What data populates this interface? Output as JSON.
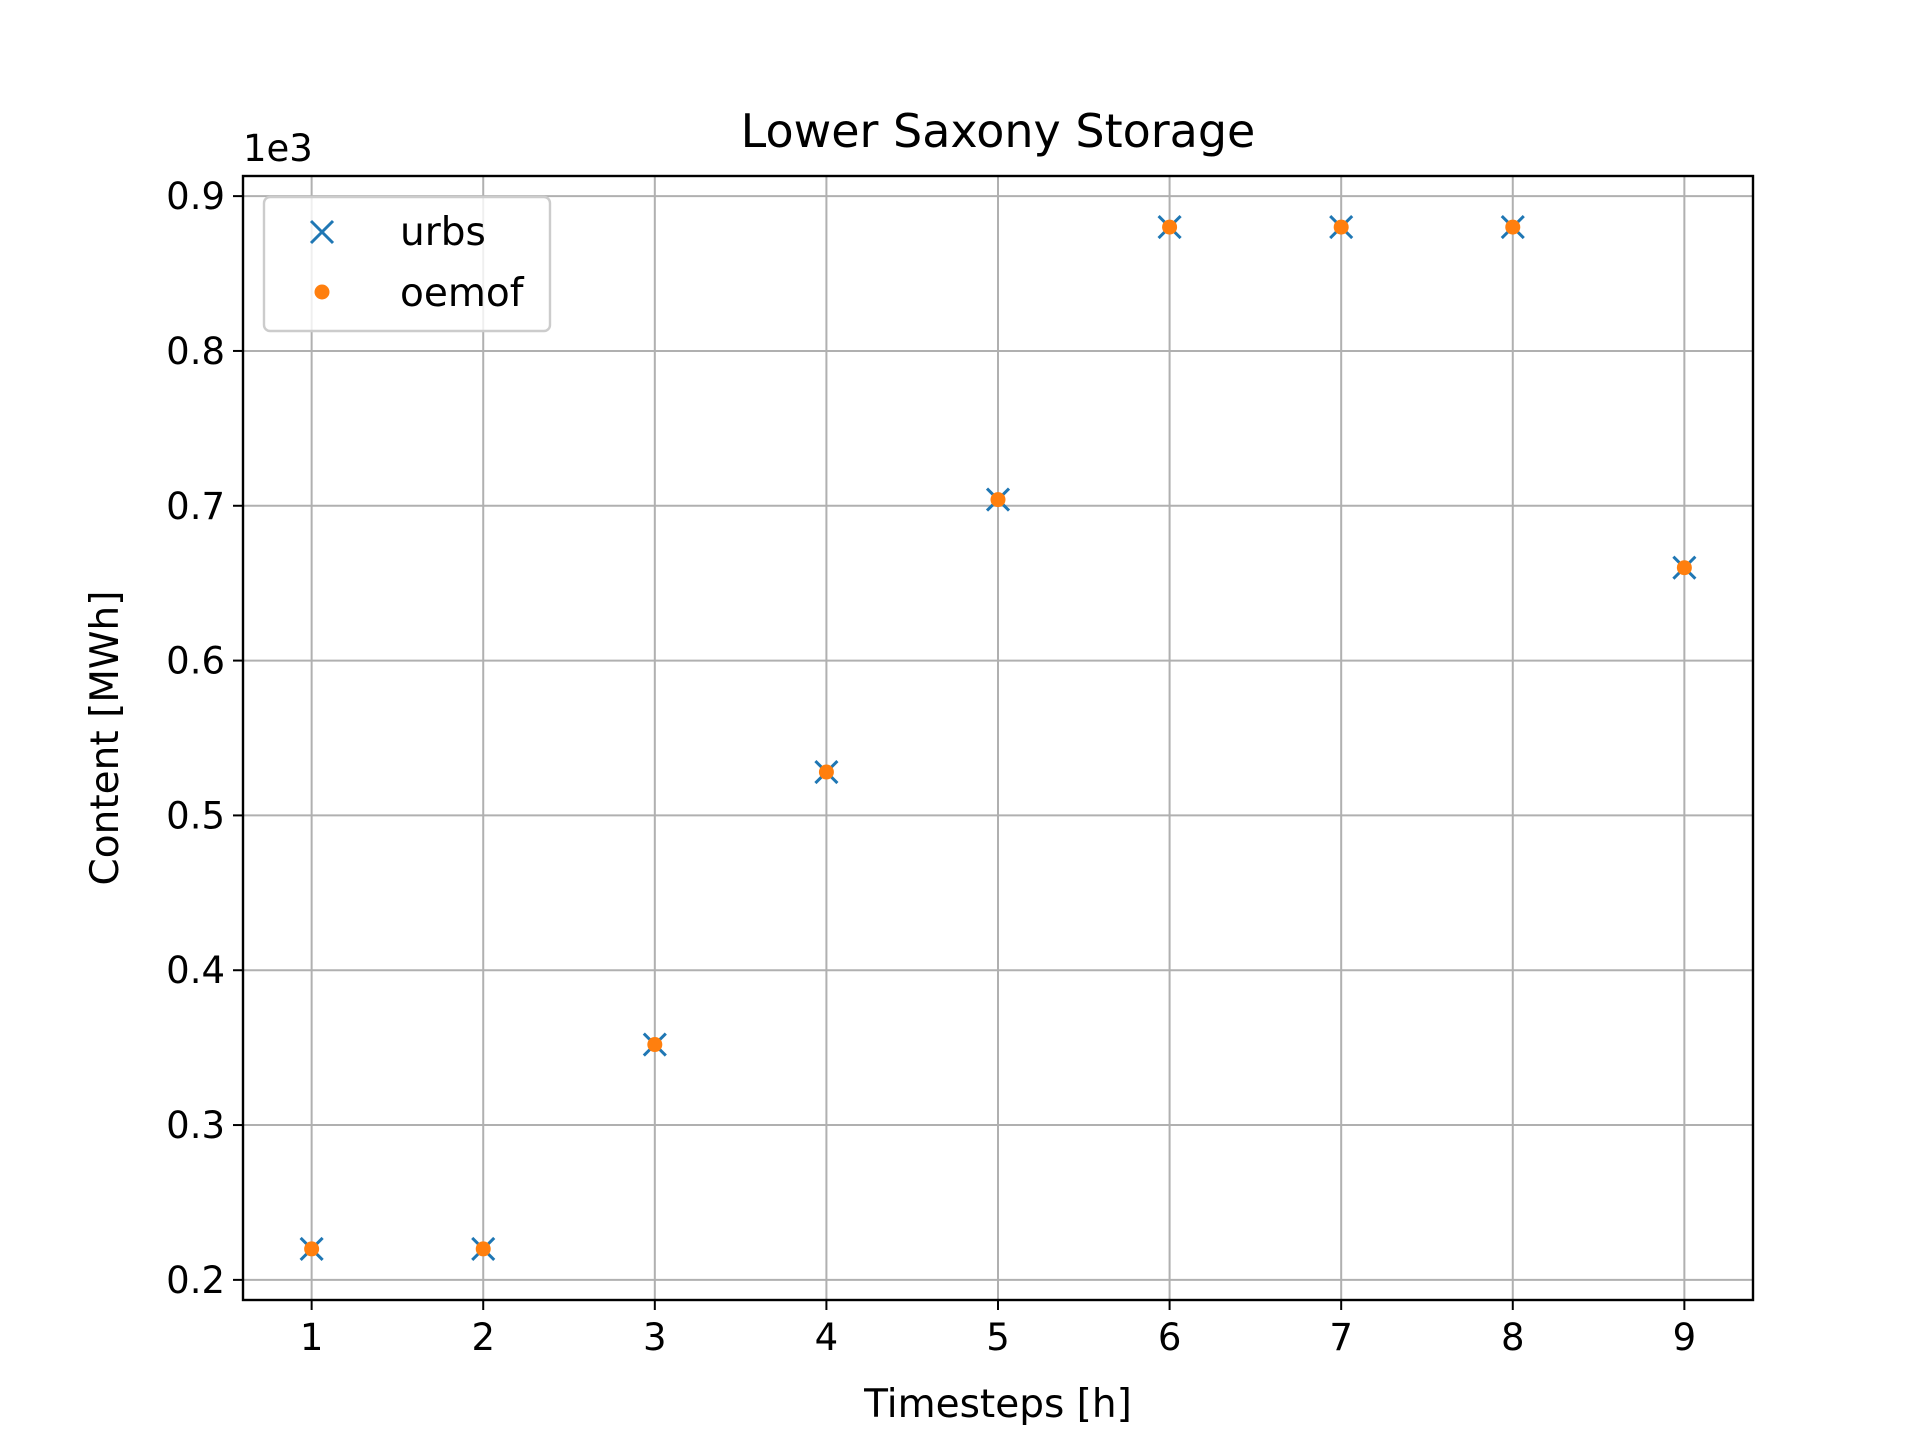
{
  "chart_data": {
    "type": "scatter",
    "title": "Lower Saxony Storage",
    "xlabel": "Timesteps [h]",
    "ylabel": "Content [MWh]",
    "y_offset_label": "1e3",
    "y_scale_factor": 1000,
    "xlim": [
      0.6,
      9.4
    ],
    "ylim": [
      187,
      913
    ],
    "x_ticks": [
      1,
      2,
      3,
      4,
      5,
      6,
      7,
      8,
      9
    ],
    "x_tick_labels": [
      "1",
      "2",
      "3",
      "4",
      "5",
      "6",
      "7",
      "8",
      "9"
    ],
    "y_ticks": [
      200,
      300,
      400,
      500,
      600,
      700,
      800,
      900
    ],
    "y_tick_labels": [
      "0.2",
      "0.3",
      "0.4",
      "0.5",
      "0.6",
      "0.7",
      "0.8",
      "0.9"
    ],
    "grid": true,
    "legend_position": "top-left",
    "x": [
      1,
      2,
      3,
      4,
      5,
      6,
      7,
      8,
      9
    ],
    "series": [
      {
        "name": "urbs",
        "marker": "x",
        "color": "#1f77b4",
        "values": [
          220,
          220,
          352,
          528,
          704,
          880,
          880,
          880,
          660
        ]
      },
      {
        "name": "oemof",
        "marker": "dot",
        "color": "#ff7f0e",
        "values": [
          220,
          220,
          352,
          528,
          704,
          880,
          880,
          880,
          660
        ]
      }
    ]
  }
}
